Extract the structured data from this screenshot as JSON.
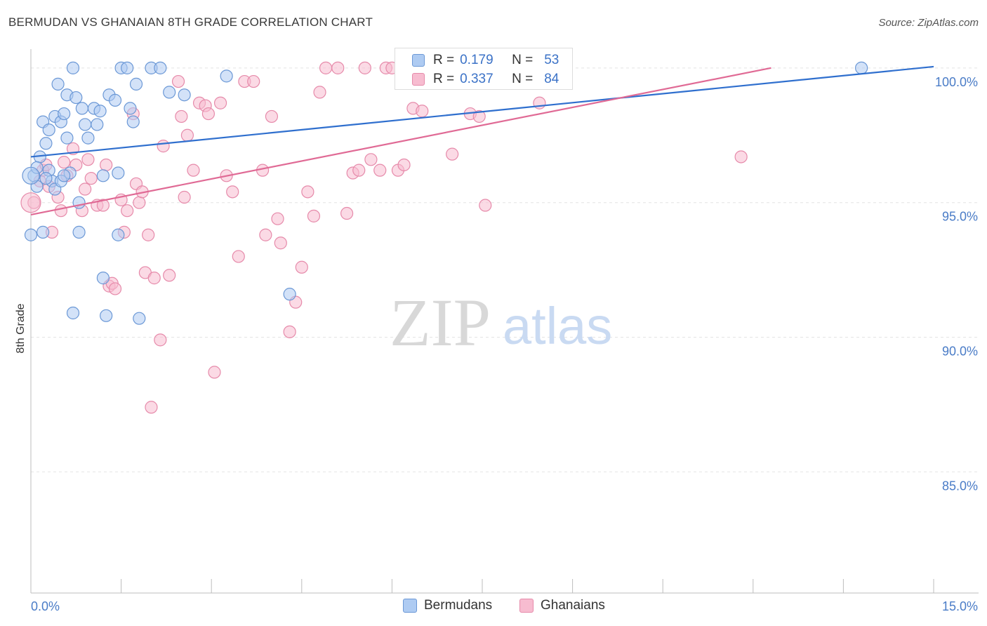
{
  "header": {
    "title": "BERMUDAN VS GHANAIAN 8TH GRADE CORRELATION CHART",
    "source": "Source: ZipAtlas.com"
  },
  "watermark": {
    "zip": "ZIP",
    "atlas": "atlas"
  },
  "colors": {
    "blue_fill": "#aecbf2",
    "blue_stroke": "#6b98d6",
    "blue_line": "#2f6fce",
    "pink_fill": "#f7bcd0",
    "pink_stroke": "#e68aaa",
    "pink_line": "#e06a95",
    "tick_label": "#4a7cc7",
    "grid": "#e4e4e4"
  },
  "legend": {
    "rows": [
      {
        "r_label": "R =",
        "r_value": "0.179",
        "n_label": "N =",
        "n_value": "53",
        "series": "blue"
      },
      {
        "r_label": "R =",
        "r_value": "0.337",
        "n_label": "N =",
        "n_value": "84",
        "series": "pink"
      }
    ],
    "bottom": [
      {
        "label": "Bermudans",
        "series": "blue"
      },
      {
        "label": "Ghanaians",
        "series": "pink"
      }
    ]
  },
  "chart_data": {
    "type": "scatter",
    "title": "BERMUDAN VS GHANAIAN 8TH GRADE CORRELATION CHART",
    "xlabel": "",
    "ylabel": "8th Grade",
    "xlim": [
      0,
      15
    ],
    "ylim": [
      80.5,
      100.7
    ],
    "x_tick_labels": [
      "0.0%",
      "15.0%"
    ],
    "y_ticks": [
      85,
      90,
      95,
      100
    ],
    "y_tick_labels": [
      "85.0%",
      "90.0%",
      "95.0%",
      "100.0%"
    ],
    "grid": true,
    "legend_position": "top-center",
    "series": [
      {
        "name": "Bermudans",
        "color": "blue",
        "r": 0.179,
        "n": 53,
        "trend": {
          "x": [
            0,
            15
          ],
          "y": [
            96.7,
            100.05
          ]
        },
        "points": [
          [
            0.0,
            93.8
          ],
          [
            0.05,
            96.0
          ],
          [
            0.1,
            95.6
          ],
          [
            0.15,
            96.7
          ],
          [
            0.2,
            98.0
          ],
          [
            0.2,
            93.9
          ],
          [
            0.25,
            97.2
          ],
          [
            0.3,
            97.7
          ],
          [
            0.3,
            96.2
          ],
          [
            0.35,
            95.8
          ],
          [
            0.4,
            95.5
          ],
          [
            0.4,
            98.2
          ],
          [
            0.45,
            99.4
          ],
          [
            0.5,
            98.0
          ],
          [
            0.5,
            95.8
          ],
          [
            0.55,
            98.3
          ],
          [
            0.6,
            97.4
          ],
          [
            0.6,
            99.0
          ],
          [
            0.65,
            96.1
          ],
          [
            0.7,
            100.0
          ],
          [
            0.7,
            90.9
          ],
          [
            0.75,
            98.9
          ],
          [
            0.8,
            95.0
          ],
          [
            0.8,
            93.9
          ],
          [
            0.85,
            98.5
          ],
          [
            0.9,
            97.9
          ],
          [
            0.95,
            97.4
          ],
          [
            1.05,
            98.5
          ],
          [
            1.1,
            97.9
          ],
          [
            1.15,
            98.4
          ],
          [
            1.2,
            96.0
          ],
          [
            1.2,
            92.2
          ],
          [
            1.25,
            90.8
          ],
          [
            1.3,
            99.0
          ],
          [
            1.4,
            98.8
          ],
          [
            1.45,
            96.1
          ],
          [
            1.45,
            93.8
          ],
          [
            1.5,
            100.0
          ],
          [
            1.6,
            100.0
          ],
          [
            1.65,
            98.5
          ],
          [
            1.7,
            98.0
          ],
          [
            1.75,
            99.4
          ],
          [
            1.8,
            90.7
          ],
          [
            2.0,
            100.0
          ],
          [
            2.15,
            100.0
          ],
          [
            2.3,
            99.1
          ],
          [
            2.55,
            99.0
          ],
          [
            3.25,
            99.7
          ],
          [
            4.3,
            91.6
          ],
          [
            13.8,
            100.0
          ],
          [
            0.1,
            96.3
          ],
          [
            0.25,
            95.9
          ],
          [
            0.55,
            96.0
          ]
        ]
      },
      {
        "name": "Ghanaians",
        "color": "pink",
        "r": 0.337,
        "n": 84,
        "trend": {
          "x": [
            0,
            12.3
          ],
          "y": [
            94.55,
            100.0
          ]
        },
        "points": [
          [
            0.05,
            95.0
          ],
          [
            0.15,
            95.8
          ],
          [
            0.2,
            96.2
          ],
          [
            0.25,
            96.4
          ],
          [
            0.3,
            95.6
          ],
          [
            0.35,
            93.9
          ],
          [
            0.45,
            95.2
          ],
          [
            0.5,
            94.7
          ],
          [
            0.55,
            96.5
          ],
          [
            0.6,
            96.0
          ],
          [
            0.7,
            97.0
          ],
          [
            0.75,
            96.4
          ],
          [
            0.85,
            94.7
          ],
          [
            0.9,
            95.5
          ],
          [
            0.95,
            96.6
          ],
          [
            1.0,
            95.9
          ],
          [
            1.1,
            94.9
          ],
          [
            1.2,
            94.9
          ],
          [
            1.25,
            96.4
          ],
          [
            1.3,
            91.9
          ],
          [
            1.35,
            92.0
          ],
          [
            1.4,
            91.8
          ],
          [
            1.5,
            95.1
          ],
          [
            1.55,
            93.9
          ],
          [
            1.6,
            94.7
          ],
          [
            1.7,
            98.3
          ],
          [
            1.75,
            95.7
          ],
          [
            1.8,
            95.0
          ],
          [
            1.85,
            95.4
          ],
          [
            1.9,
            92.4
          ],
          [
            1.95,
            93.8
          ],
          [
            2.0,
            87.4
          ],
          [
            2.05,
            92.2
          ],
          [
            2.15,
            89.9
          ],
          [
            2.2,
            97.1
          ],
          [
            2.3,
            92.3
          ],
          [
            2.45,
            99.5
          ],
          [
            2.5,
            98.2
          ],
          [
            2.55,
            95.2
          ],
          [
            2.6,
            97.5
          ],
          [
            2.7,
            96.2
          ],
          [
            2.8,
            98.7
          ],
          [
            2.9,
            98.6
          ],
          [
            2.95,
            98.3
          ],
          [
            3.05,
            88.7
          ],
          [
            3.15,
            98.7
          ],
          [
            3.25,
            96.0
          ],
          [
            3.35,
            95.4
          ],
          [
            3.45,
            93.0
          ],
          [
            3.55,
            99.5
          ],
          [
            3.7,
            99.5
          ],
          [
            3.85,
            96.2
          ],
          [
            3.9,
            93.8
          ],
          [
            4.0,
            98.2
          ],
          [
            4.1,
            94.4
          ],
          [
            4.15,
            93.5
          ],
          [
            4.3,
            90.2
          ],
          [
            4.4,
            91.3
          ],
          [
            4.5,
            92.6
          ],
          [
            4.6,
            95.4
          ],
          [
            4.7,
            94.5
          ],
          [
            4.8,
            99.1
          ],
          [
            4.9,
            100.0
          ],
          [
            5.1,
            100.0
          ],
          [
            5.25,
            94.6
          ],
          [
            5.35,
            96.1
          ],
          [
            5.45,
            96.2
          ],
          [
            5.55,
            100.0
          ],
          [
            5.65,
            96.6
          ],
          [
            5.8,
            96.2
          ],
          [
            5.9,
            100.0
          ],
          [
            6.0,
            100.0
          ],
          [
            6.1,
            96.2
          ],
          [
            6.2,
            96.4
          ],
          [
            6.35,
            98.5
          ],
          [
            6.5,
            98.4
          ],
          [
            6.8,
            99.8
          ],
          [
            7.0,
            96.8
          ],
          [
            7.3,
            98.3
          ],
          [
            7.45,
            98.2
          ],
          [
            7.55,
            94.9
          ],
          [
            8.3,
            100.0
          ],
          [
            8.45,
            98.7
          ],
          [
            11.8,
            96.7
          ]
        ]
      }
    ]
  }
}
